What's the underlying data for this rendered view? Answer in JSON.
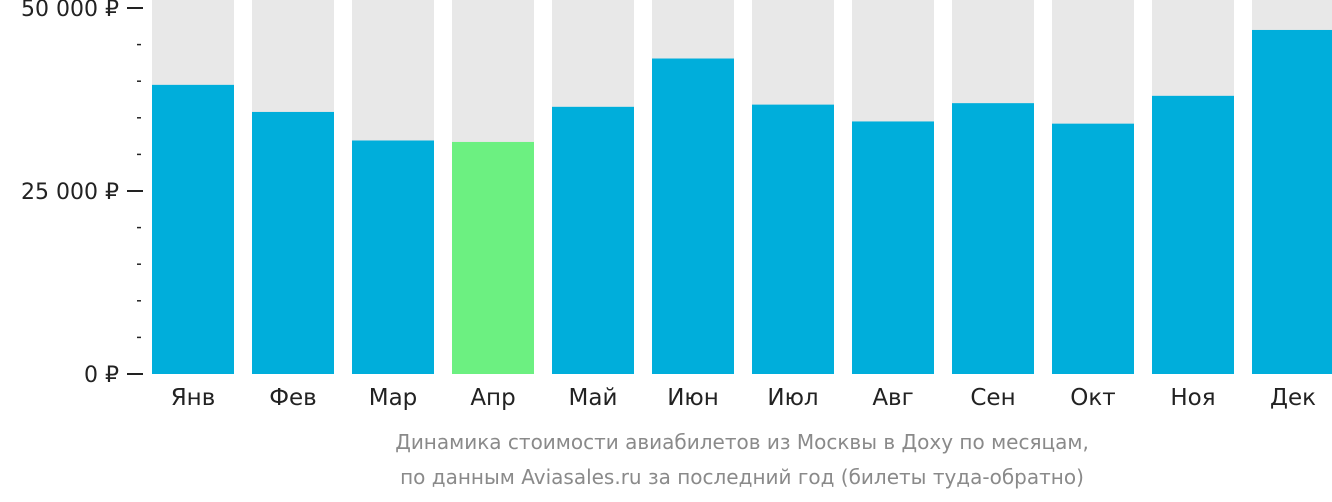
{
  "chart_data": {
    "type": "bar",
    "categories": [
      "Янв",
      "Фев",
      "Мар",
      "Апр",
      "Май",
      "Июн",
      "Июл",
      "Авг",
      "Сен",
      "Окт",
      "Ноя",
      "Дек"
    ],
    "values": [
      39500,
      35800,
      31900,
      31700,
      36500,
      43100,
      36800,
      34500,
      37000,
      34200,
      38000,
      47000
    ],
    "highlight_index": 3,
    "ylim": [
      0,
      50000
    ],
    "yticks": [
      {
        "value": 0,
        "label": "0 ₽"
      },
      {
        "value": 25000,
        "label": "25 000 ₽"
      },
      {
        "value": 50000,
        "label": "50 000 ₽"
      }
    ],
    "minor_tick_step": 5000,
    "title": "",
    "xlabel": "",
    "ylabel": "",
    "colors": {
      "bar": "#00aedb",
      "highlight": "#6cf081",
      "background_bar": "#e8e8e8",
      "axis": "#222222",
      "caption": "#8a8a8a"
    }
  },
  "caption": {
    "line1": "Динамика стоимости авиабилетов из Москвы в Доху по месяцам,",
    "line2": "по данным Aviasales.ru за последний год (билеты туда-обратно)"
  }
}
